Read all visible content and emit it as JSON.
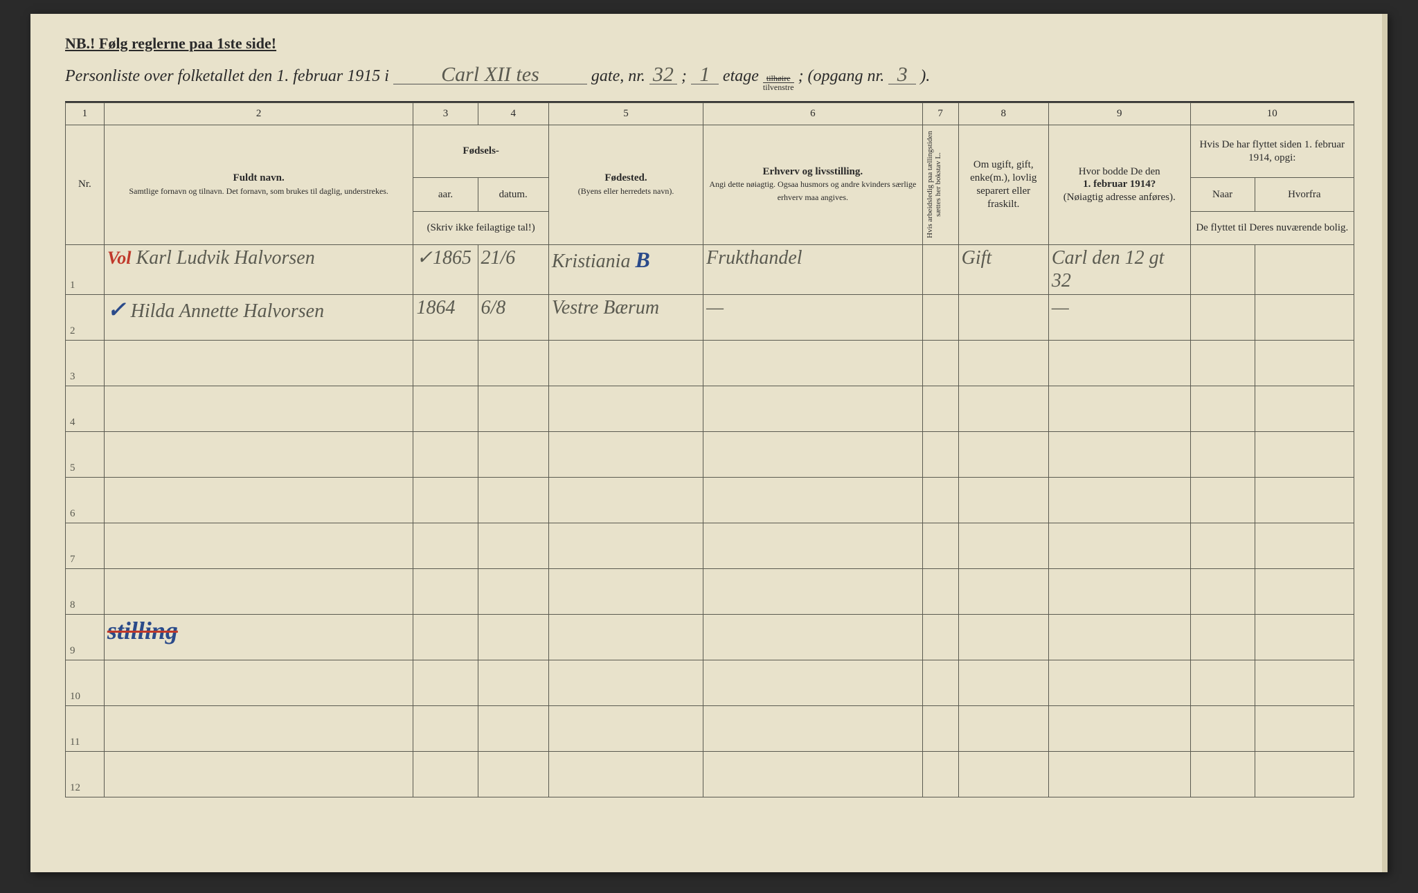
{
  "page": {
    "nb": "NB.!  Følg reglerne paa 1ste side!",
    "header_prefix": "Personliste over folketallet den 1. februar 1915 i",
    "street": "Carl XII tes",
    "gate_label": "gate, nr.",
    "gate_nr": "32",
    "etage_label": "etage",
    "etage": "1",
    "side_top": "tilhøire",
    "side_bot": "tilvenstre",
    "opgang_label": "; (opgang nr.",
    "opgang": "3",
    "close": ")."
  },
  "columns": {
    "c1": "1",
    "c2": "2",
    "c3": "3",
    "c4": "4",
    "c5": "5",
    "c6": "6",
    "c7": "7",
    "c8": "8",
    "c9": "9",
    "c10": "10",
    "nr": "Nr.",
    "navn_title": "Fuldt navn.",
    "navn_sub": "Samtlige fornavn og tilnavn. Det fornavn, som brukes til daglig, understrekes.",
    "fodsels": "Fødsels-",
    "aar": "aar.",
    "datum": "datum.",
    "fodsels_sub": "(Skriv ikke feilagtige tal!)",
    "fodested": "Fødested.",
    "fodested_sub": "(Byens eller herredets navn).",
    "erhverv": "Erhverv og livsstilling.",
    "erhverv_sub": "Angi dette nøiagtig. Ogsaa husmors og andre kvinders særlige erhverv maa angives.",
    "col7": "Hvis arbeidsledig paa tællingstiden sættes her bokstav L.",
    "col8": "Om ugift, gift, enke(m.), lovlig separert eller fraskilt.",
    "col9": "Hvor bodde De den 1. februar 1914? (Nøiagtig adresse anføres).",
    "col10": "Hvis De har flyttet siden 1. februar 1914, opgi:",
    "col10a": "Naar",
    "col10b": "Hvorfra",
    "col10sub": "De flyttet til Deres nuværende bolig."
  },
  "rows": [
    {
      "nr": "1",
      "mark": "Vol",
      "navn": "Karl Ludvik Halvorsen",
      "aar_check": "✓",
      "aar": "1865",
      "datum": "21/6",
      "fodested": "Kristiania",
      "fodested_mark": "B",
      "erhverv": "Frukthandel",
      "c8": "Gift",
      "c9": "Carl den 12 gt 32"
    },
    {
      "nr": "2",
      "mark": "✓",
      "navn": "Hilda Annette Halvorsen",
      "aar": "1864",
      "datum": "6/8",
      "fodested": "Vestre Bærum",
      "erhverv": "—",
      "c9": "—"
    },
    {
      "nr": "3"
    },
    {
      "nr": "4"
    },
    {
      "nr": "5"
    },
    {
      "nr": "6"
    },
    {
      "nr": "7"
    },
    {
      "nr": "8"
    },
    {
      "nr": "9",
      "strike": "stilling"
    },
    {
      "nr": "10"
    },
    {
      "nr": "11"
    },
    {
      "nr": "12"
    }
  ]
}
